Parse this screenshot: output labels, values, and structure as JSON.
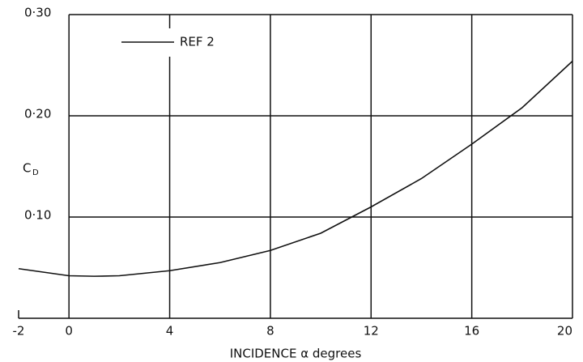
{
  "chart_data": {
    "type": "line",
    "xlabel": "INCIDENCE  α degrees",
    "ylabel": {
      "main": "C",
      "sub": "D"
    },
    "x": [
      -2,
      0,
      1,
      2,
      4,
      6,
      8,
      10,
      12,
      14,
      16,
      18,
      20
    ],
    "series": [
      {
        "name": "REF 2",
        "color": "#111111",
        "values": [
          0.049,
          0.042,
          0.0415,
          0.042,
          0.047,
          0.055,
          0.067,
          0.084,
          0.11,
          0.138,
          0.172,
          0.208,
          0.254
        ]
      }
    ],
    "xlim": [
      -2,
      20
    ],
    "xticks": [
      -2,
      0,
      4,
      8,
      12,
      16,
      20
    ],
    "ylim": [
      0,
      0.3
    ],
    "yticks": [
      {
        "value": 0.1,
        "label": "0·10"
      },
      {
        "value": 0.2,
        "label": "0·20"
      },
      {
        "value": 0.3,
        "label": "0·30"
      }
    ],
    "grid": true
  }
}
